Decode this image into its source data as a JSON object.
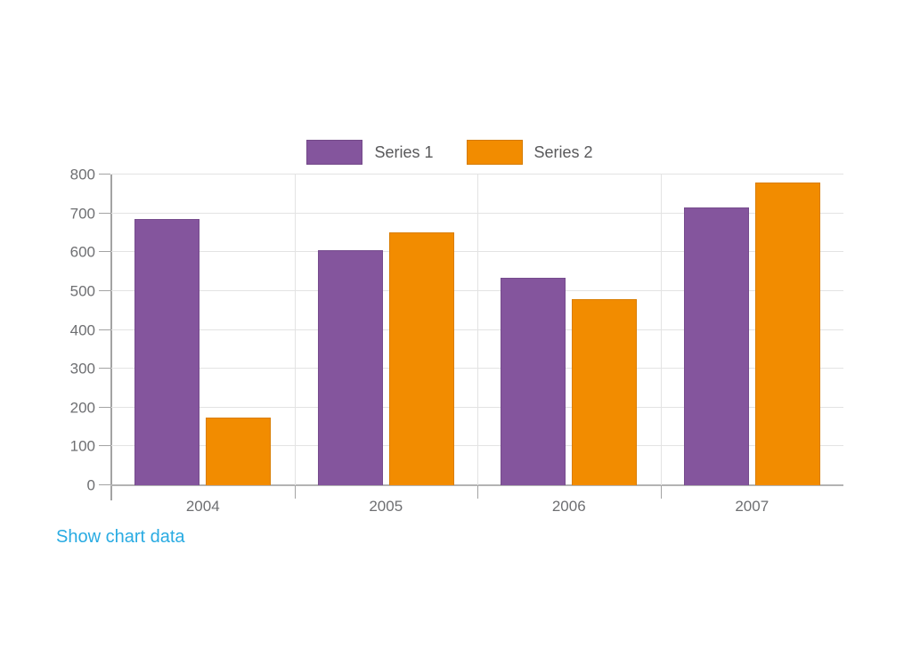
{
  "chart_data": {
    "type": "bar",
    "categories": [
      "2004",
      "2005",
      "2006",
      "2007"
    ],
    "series": [
      {
        "name": "Series 1",
        "color": "#84559D",
        "values": [
          685,
          605,
          535,
          715
        ]
      },
      {
        "name": "Series 2",
        "color": "#F28C00",
        "values": [
          175,
          650,
          480,
          780
        ]
      }
    ],
    "title": "",
    "xlabel": "",
    "ylabel": "",
    "ylim": [
      0,
      800
    ],
    "ytick_step": 100,
    "grid": true,
    "legend_position": "top",
    "colors": {
      "gridline": "#E3E3E3",
      "axis_line": "#A3A3A3",
      "tick_label": "#6E6F72",
      "legend_text": "#59595B"
    }
  },
  "link": {
    "label": "Show chart data",
    "color": "#29ABE2"
  }
}
